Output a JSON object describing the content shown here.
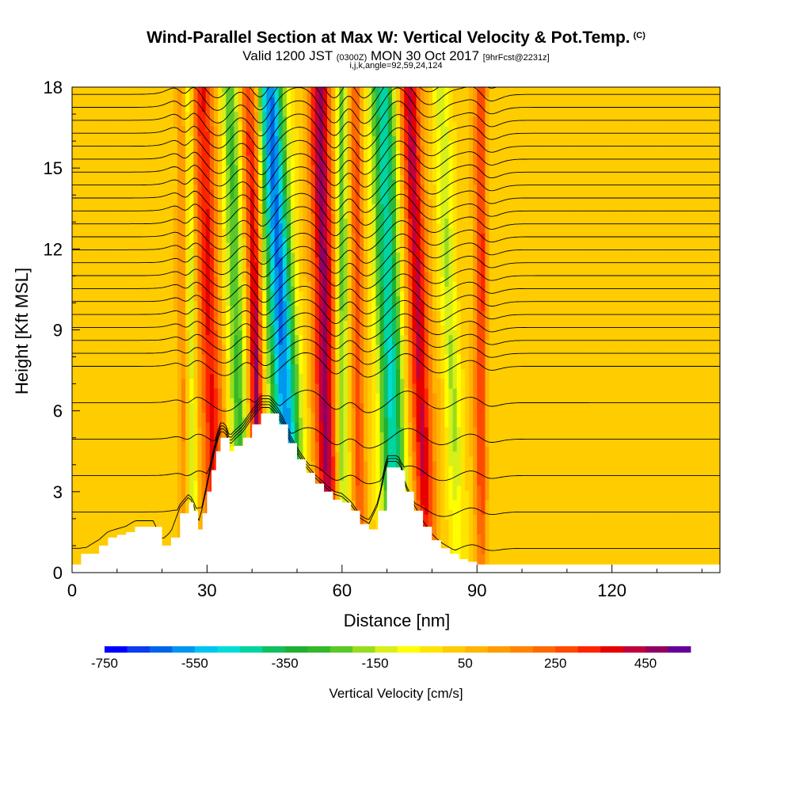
{
  "title": {
    "main": "Wind-Parallel Section at Max W: Vertical Velocity & Pot.Temp.",
    "copyright": "(C)",
    "valid_prefix": "Valid 1200 JST",
    "valid_utc": "(0300Z)",
    "valid_date": "MON 30 Oct 2017",
    "forecast": "[9hrFcst@2231z]",
    "grid_info": "i,j,k,angle=92,59,24,124"
  },
  "colorbar_label": "Vertical Velocity [cm/s]",
  "chart_data": {
    "type": "heatmap",
    "xlabel": "Distance [nm]",
    "ylabel": "Height [Kft MSL]",
    "xlim": [
      0,
      144
    ],
    "ylim": [
      0,
      18
    ],
    "x_ticks": [
      "0",
      "30",
      "60",
      "90",
      "120"
    ],
    "x_tick_values": [
      0,
      30,
      60,
      90,
      120
    ],
    "y_ticks": [
      "0",
      "3",
      "6",
      "9",
      "12",
      "15",
      "18"
    ],
    "y_tick_values": [
      0,
      3,
      6,
      9,
      12,
      15,
      18
    ],
    "colorbar": {
      "ticks": [
        "-750",
        "-550",
        "-350",
        "-150",
        "50",
        "250",
        "450"
      ],
      "tick_values": [
        -750,
        -550,
        -350,
        -150,
        50,
        250,
        450
      ],
      "range": [
        -750,
        550
      ],
      "step": 50,
      "colors": [
        "#0000ff",
        "#0a3cf0",
        "#0064e8",
        "#0096ee",
        "#00c4f0",
        "#00dcd8",
        "#00d4a0",
        "#10c060",
        "#20b030",
        "#34b828",
        "#5ac828",
        "#98dc20",
        "#d8f018",
        "#fffe00",
        "#ffe400",
        "#ffcc00",
        "#ffb400",
        "#ff9c00",
        "#ff8400",
        "#ff6a00",
        "#ff4a00",
        "#ff2400",
        "#e60000",
        "#c0003c",
        "#900060",
        "#64009a"
      ]
    },
    "terrain_profile": {
      "x": [
        0,
        2,
        3,
        6,
        8,
        10,
        12,
        14,
        16,
        18,
        20,
        22,
        24,
        26,
        27,
        28,
        29,
        30,
        31,
        32,
        33,
        34,
        35,
        36,
        38,
        40,
        42,
        44,
        46,
        48,
        50,
        52,
        54,
        56,
        58,
        60,
        62,
        64,
        66,
        68,
        70,
        72,
        73,
        74,
        76,
        78,
        80,
        82,
        84,
        86,
        88,
        90,
        100,
        110,
        120,
        130,
        144
      ],
      "z": [
        0.3,
        0.7,
        0.7,
        1.0,
        1.3,
        1.4,
        1.5,
        1.7,
        1.7,
        1.7,
        1.0,
        1.3,
        2.2,
        2.6,
        2.3,
        1.6,
        2.2,
        3.0,
        3.8,
        4.5,
        5.0,
        5.0,
        4.5,
        4.7,
        5.0,
        5.5,
        5.9,
        5.9,
        5.5,
        4.8,
        4.2,
        3.7,
        3.3,
        3.0,
        2.7,
        2.6,
        2.3,
        1.8,
        1.6,
        2.3,
        3.9,
        3.9,
        3.8,
        3.0,
        2.3,
        1.7,
        1.2,
        0.9,
        0.7,
        0.5,
        0.4,
        0.3,
        0.3,
        0.3,
        0.3,
        0.3,
        0.3
      ]
    },
    "vertical_velocity_bands": [
      {
        "x_bottom": 32,
        "x_top": 29,
        "w": 330,
        "half_width": 2.3
      },
      {
        "x_bottom": 38,
        "x_top": 35,
        "w": -280,
        "half_width": 2.0
      },
      {
        "x_bottom": 42,
        "x_top": 39,
        "w": 280,
        "half_width": 1.6
      },
      {
        "x_bottom": 49,
        "x_top": 44,
        "w": -640,
        "half_width": 3.0
      },
      {
        "x_bottom": 57,
        "x_top": 55,
        "w": 440,
        "half_width": 2.4
      },
      {
        "x_bottom": 60,
        "x_top": 60,
        "w": -260,
        "half_width": 1.3
      },
      {
        "x_bottom": 64,
        "x_top": 63,
        "w": 250,
        "half_width": 1.3
      },
      {
        "x_bottom": 72,
        "x_top": 69,
        "w": -480,
        "half_width": 2.7
      },
      {
        "x_bottom": 79,
        "x_top": 75,
        "w": 390,
        "half_width": 2.3
      },
      {
        "x_bottom": 86,
        "x_top": 82,
        "w": -180,
        "half_width": 1.8
      },
      {
        "x_bottom": 91,
        "x_top": 91,
        "w": 280,
        "half_width": 1.5
      },
      {
        "x_bottom": 41,
        "x_top": 41,
        "w": 170,
        "half_width": 1.2
      },
      {
        "x_bottom": 27,
        "x_top": 26,
        "w": -160,
        "half_width": 0.9
      },
      {
        "x_bottom": 25,
        "x_top": 24,
        "w": 120,
        "half_width": 1.0
      }
    ]
  }
}
